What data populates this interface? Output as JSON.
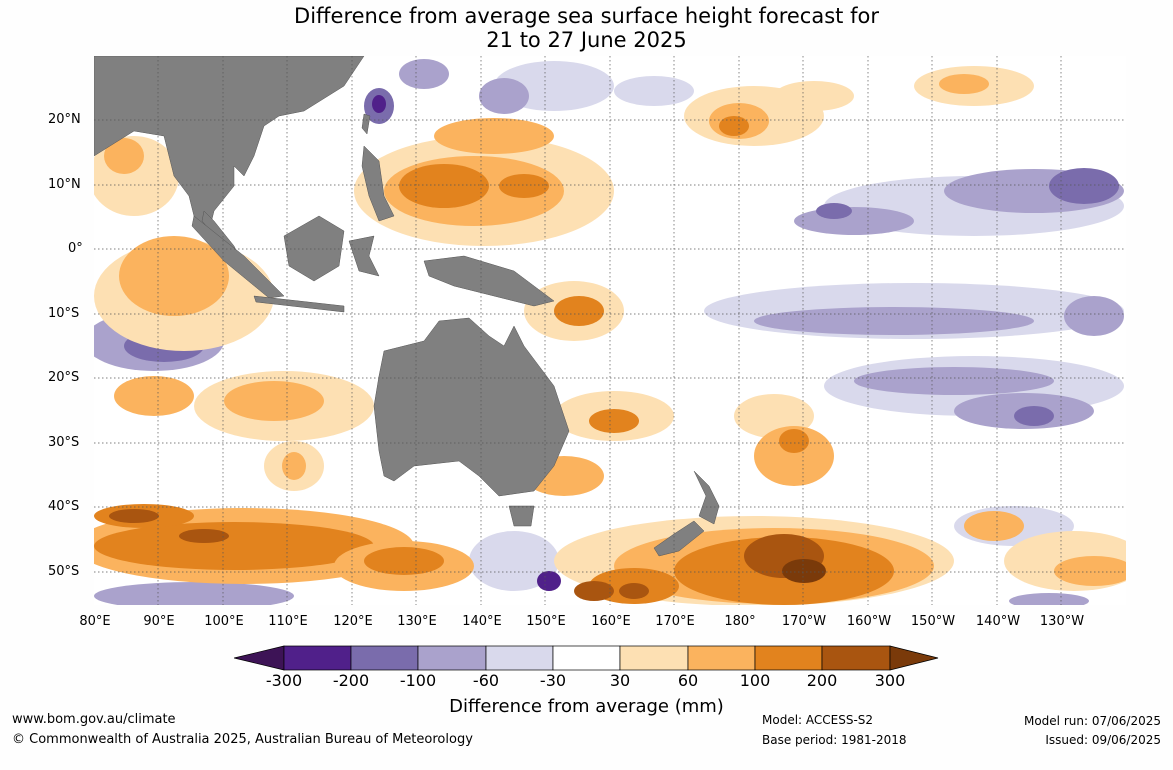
{
  "title_line1": "Difference from average sea surface height forecast for",
  "title_line2": "21 to 27 June 2025",
  "lat_labels": [
    "20°N",
    "10°N",
    "0°",
    "10°S",
    "20°S",
    "30°S",
    "40°S",
    "50°S"
  ],
  "lon_labels": [
    "80°E",
    "90°E",
    "100°E",
    "110°E",
    "120°E",
    "130°E",
    "140°E",
    "150°E",
    "160°E",
    "170°E",
    "180°",
    "170°W",
    "160°W",
    "150°W",
    "140°W",
    "130°W"
  ],
  "legend": {
    "ticks": [
      "-300",
      "-200",
      "-100",
      "-60",
      "-30",
      "30",
      "60",
      "100",
      "200",
      "300"
    ],
    "colors": [
      "#3d1356",
      "#50208a",
      "#7a6cac",
      "#aaa2cc",
      "#d9d9ec",
      "#ffffff",
      "#fde0b3",
      "#fbb35e",
      "#e2831e",
      "#a95510",
      "#7a3a0a"
    ],
    "title": "Difference from average (mm)"
  },
  "map_colors": {
    "land": "#808080",
    "grid": "#555555"
  },
  "footer": {
    "website": "www.bom.gov.au/climate",
    "copyright": "© Commonwealth of Australia 2025, Australian Bureau of Meteorology",
    "model": "Model: ACCESS-S2",
    "base_period": "Base period: 1981-2018",
    "model_run": "Model run: 07/06/2025",
    "issued": "Issued: 09/06/2025"
  }
}
